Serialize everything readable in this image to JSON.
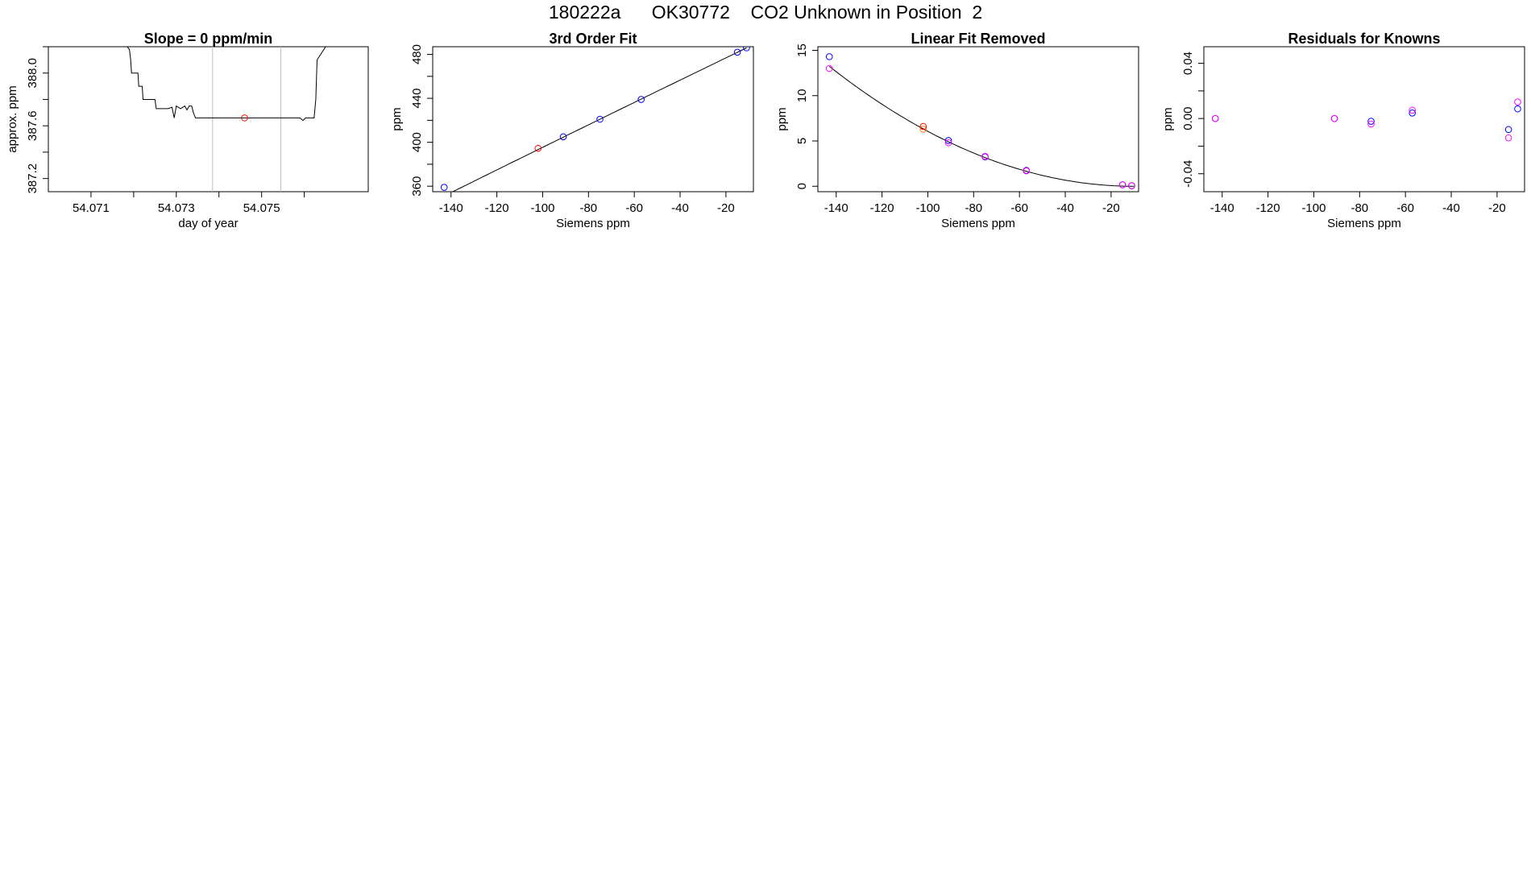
{
  "page_title": "180222a      OK30772    CO2 Unknown in Position  2",
  "colors": {
    "axis": "#000000",
    "line": "#000000",
    "marker_blue": "#0000ff",
    "marker_red": "#ff0000",
    "marker_magenta": "#ff00ff",
    "marker_purple": "#8000ff",
    "marker_orange": "#ff8000",
    "guide_lines": "#bfbfbf"
  },
  "chart_data": [
    {
      "type": "line",
      "title": "Slope =  0  ppm/min",
      "xlabel": "day of year",
      "ylabel": "approx. ppm",
      "xlim": [
        54.07,
        54.0775
      ],
      "ylim": [
        387.1,
        388.2
      ],
      "xticks": [
        54.071,
        54.072,
        54.073,
        54.074,
        54.075,
        54.076
      ],
      "xtick_labels": [
        "54.071",
        "",
        "54.073",
        "",
        "54.075",
        ""
      ],
      "yticks": [
        387.2,
        387.4,
        387.6,
        387.8,
        388.0,
        388.2
      ],
      "ytick_labels": [
        "387.2",
        "",
        "387.6",
        "",
        "388.0",
        ""
      ],
      "guide_lines_x": [
        54.07385,
        54.07545
      ],
      "series": [
        {
          "x": [
            54.07185,
            54.0719,
            54.07193,
            54.07195,
            54.0721,
            54.07212,
            54.0722,
            54.07222,
            54.0725,
            54.07253,
            54.0728,
            54.0729,
            54.07295,
            54.073,
            54.07305,
            54.0731,
            54.0732,
            54.07325,
            54.0733,
            54.07336,
            54.0734,
            54.07345,
            54.07348,
            54.0735,
            54.0737,
            54.0739,
            54.0741,
            54.0743,
            54.0745,
            54.0747,
            54.0749,
            54.0751,
            54.0753,
            54.0755,
            54.0756,
            54.07575,
            54.0758,
            54.0759,
            54.07597,
            54.07603,
            54.0762,
            54.07623,
            54.07627,
            54.0763,
            54.0765
          ],
          "y": [
            388.2,
            388.18,
            388.1,
            388.0,
            388.0,
            387.9,
            387.9,
            387.8,
            387.8,
            387.73,
            387.73,
            387.74,
            387.66,
            387.75,
            387.74,
            387.73,
            387.75,
            387.72,
            387.75,
            387.75,
            387.7,
            387.66,
            387.66,
            387.66,
            387.66,
            387.66,
            387.66,
            387.66,
            387.66,
            387.66,
            387.66,
            387.66,
            387.66,
            387.66,
            387.66,
            387.66,
            387.66,
            387.66,
            387.64,
            387.66,
            387.66,
            387.66,
            387.8,
            388.1,
            388.2
          ]
        }
      ],
      "points": [
        {
          "x": 54.0746,
          "y": 387.66,
          "color": "red"
        }
      ]
    },
    {
      "type": "scatter",
      "title": "3rd Order Fit",
      "xlabel": "Siemens ppm",
      "ylabel": "ppm",
      "xlim": [
        -148,
        -8
      ],
      "ylim": [
        355,
        487
      ],
      "xticks": [
        -140,
        -120,
        -100,
        -80,
        -60,
        -40,
        -20
      ],
      "xtick_labels": [
        "-140",
        "-120",
        "-100",
        "-80",
        "-60",
        "-40",
        "-20"
      ],
      "yticks": [
        360,
        380,
        400,
        420,
        440,
        460,
        480
      ],
      "ytick_labels": [
        "360",
        "",
        "400",
        "",
        "440",
        "",
        "480"
      ],
      "fit_curve": {
        "from": -143,
        "to": -11,
        "coef": [
          485.9,
          1.008,
          -0.0001,
          0
        ]
      },
      "series": [
        {
          "x": [
            -143,
            -91,
            -75,
            -57,
            -15,
            -11
          ],
          "y": [
            359,
            405,
            421,
            439,
            482,
            486
          ],
          "color": "blue"
        },
        {
          "x": [
            -102
          ],
          "y": [
            394.5
          ],
          "color": "red"
        }
      ]
    },
    {
      "type": "scatter",
      "title": "Linear Fit Removed",
      "xlabel": "Siemens ppm",
      "ylabel": "ppm",
      "xlim": [
        -148,
        -8
      ],
      "ylim": [
        -0.6,
        15.4
      ],
      "xticks": [
        -140,
        -120,
        -100,
        -80,
        -60,
        -40,
        -20
      ],
      "xtick_labels": [
        "-140",
        "-120",
        "-100",
        "-80",
        "-60",
        "-40",
        "-20"
      ],
      "yticks": [
        0,
        5,
        10,
        15
      ],
      "ytick_labels": [
        "0",
        "5",
        "10",
        "15"
      ],
      "fit_curve": {
        "from": -143,
        "to": -10,
        "coef": [
          0,
          0,
          0.000748,
          0
        ]
      },
      "series": [
        {
          "x": [
            -143,
            -91,
            -75,
            -57,
            -15,
            -11
          ],
          "y": [
            14.3,
            5.05,
            3.25,
            1.75,
            0.16,
            0.06
          ],
          "color": "blue"
        },
        {
          "x": [
            -143,
            -91,
            -75,
            -57,
            -15,
            -11
          ],
          "y": [
            13.0,
            4.8,
            3.3,
            1.7,
            0.16,
            0.06
          ],
          "color": "magenta"
        },
        {
          "x": [
            -102
          ],
          "y": [
            6.3
          ],
          "color": "orange"
        },
        {
          "x": [
            -102
          ],
          "y": [
            6.6
          ],
          "color": "red"
        }
      ]
    },
    {
      "type": "scatter",
      "title": "Residuals for Knowns",
      "xlabel": "Siemens ppm",
      "ylabel": "ppm",
      "xlim": [
        -148,
        -8
      ],
      "ylim": [
        -0.053,
        0.052
      ],
      "xticks": [
        -140,
        -120,
        -100,
        -80,
        -60,
        -40,
        -20
      ],
      "xtick_labels": [
        "-140",
        "-120",
        "-100",
        "-80",
        "-60",
        "-40",
        "-20"
      ],
      "yticks": [
        -0.04,
        -0.02,
        0.0,
        0.02,
        0.04
      ],
      "ytick_labels": [
        "-0.04",
        "",
        "0.00",
        "",
        "0.04"
      ],
      "series": [
        {
          "x": [
            -143,
            -91,
            -75,
            -57,
            -15,
            -11
          ],
          "y": [
            0.0,
            0.0,
            -0.002,
            0.004,
            -0.008,
            0.007
          ],
          "color": "blue"
        },
        {
          "x": [
            -143,
            -91,
            -75,
            -57,
            -15,
            -11
          ],
          "y": [
            0.0,
            0.0,
            -0.004,
            0.006,
            -0.014,
            0.012
          ],
          "color": "magenta"
        }
      ]
    }
  ]
}
